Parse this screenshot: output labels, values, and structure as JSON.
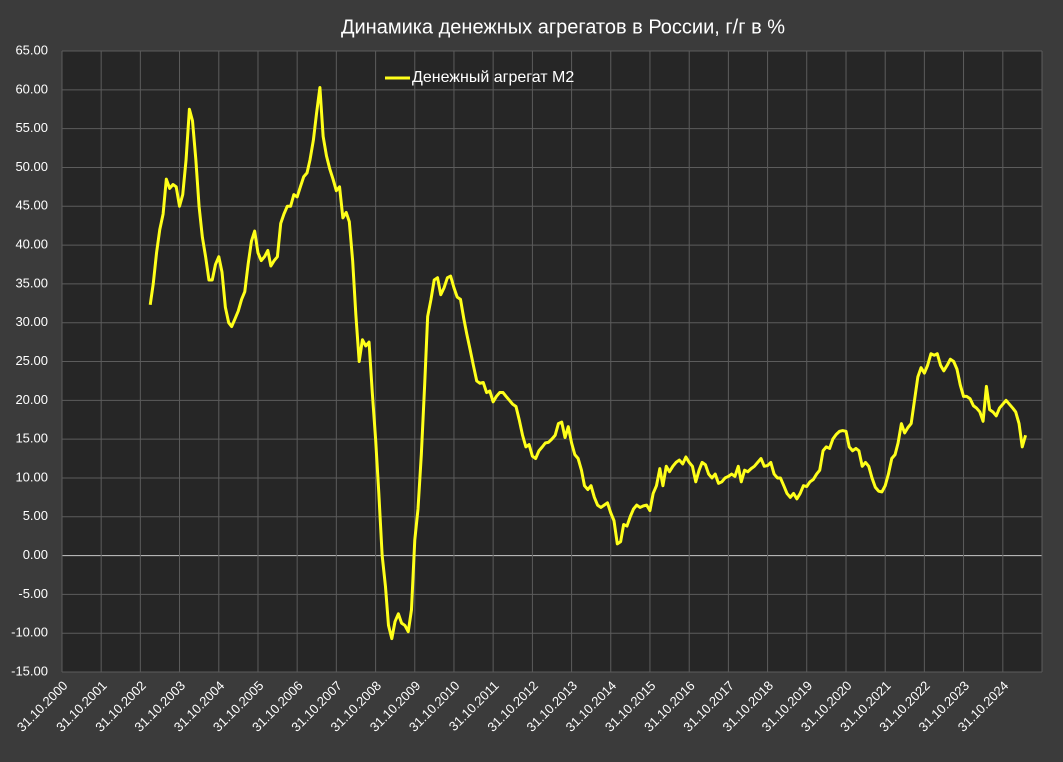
{
  "chart_data": {
    "type": "line",
    "title": "Динамика денежных агрегатов  в России, г/г в %",
    "legend": "top",
    "grid": true,
    "xlim": [
      "2000-10-31",
      "2025-10-31"
    ],
    "xticks": [
      {
        "value": "2000-10-31",
        "label": "31.10.2000"
      },
      {
        "value": "2001-10-31",
        "label": "31.10.2001"
      },
      {
        "value": "2002-10-31",
        "label": "31.10.2002"
      },
      {
        "value": "2003-10-31",
        "label": "31.10.2003"
      },
      {
        "value": "2004-10-31",
        "label": "31.10.2004"
      },
      {
        "value": "2005-10-31",
        "label": "31.10.2005"
      },
      {
        "value": "2006-10-31",
        "label": "31.10.2006"
      },
      {
        "value": "2007-10-31",
        "label": "31.10.2007"
      },
      {
        "value": "2008-10-31",
        "label": "31.10.2008"
      },
      {
        "value": "2009-10-31",
        "label": "31.10.2009"
      },
      {
        "value": "2010-10-31",
        "label": "31.10.2010"
      },
      {
        "value": "2011-10-31",
        "label": "31.10.2011"
      },
      {
        "value": "2012-10-31",
        "label": "31.10.2012"
      },
      {
        "value": "2013-10-31",
        "label": "31.10.2013"
      },
      {
        "value": "2014-10-31",
        "label": "31.10.2014"
      },
      {
        "value": "2015-10-31",
        "label": "31.10.2015"
      },
      {
        "value": "2016-10-31",
        "label": "31.10.2016"
      },
      {
        "value": "2017-10-31",
        "label": "31.10.2017"
      },
      {
        "value": "2018-10-31",
        "label": "31.10.2018"
      },
      {
        "value": "2019-10-31",
        "label": "31.10.2019"
      },
      {
        "value": "2020-10-31",
        "label": "31.10.2020"
      },
      {
        "value": "2021-10-31",
        "label": "31.10.2021"
      },
      {
        "value": "2022-10-31",
        "label": "31.10.2022"
      },
      {
        "value": "2023-10-31",
        "label": "31.10.2023"
      },
      {
        "value": "2024-10-31",
        "label": "31.10.2024"
      }
    ],
    "ylim": [
      -15,
      65
    ],
    "yticks": [
      {
        "value": -15,
        "label": "-15.00"
      },
      {
        "value": -10,
        "label": "-10.00"
      },
      {
        "value": -5,
        "label": "-5.00"
      },
      {
        "value": 0,
        "label": "0.00"
      },
      {
        "value": 5,
        "label": "5.00"
      },
      {
        "value": 10,
        "label": "10.00"
      },
      {
        "value": 15,
        "label": "15.00"
      },
      {
        "value": 20,
        "label": "20.00"
      },
      {
        "value": 25,
        "label": "25.00"
      },
      {
        "value": 30,
        "label": "30.00"
      },
      {
        "value": 35,
        "label": "35.00"
      },
      {
        "value": 40,
        "label": "40.00"
      },
      {
        "value": 45,
        "label": "45.00"
      },
      {
        "value": 50,
        "label": "50.00"
      },
      {
        "value": 55,
        "label": "55.00"
      },
      {
        "value": 60,
        "label": "60.00"
      },
      {
        "value": 65,
        "label": "65.00"
      }
    ],
    "x": [
      "2003-01-31",
      "2003-02-28",
      "2003-03-31",
      "2003-04-30",
      "2003-05-31",
      "2003-06-30",
      "2003-07-31",
      "2003-08-31",
      "2003-09-30",
      "2003-10-31",
      "2003-11-30",
      "2003-12-31",
      "2004-01-31",
      "2004-02-29",
      "2004-03-31",
      "2004-04-30",
      "2004-05-31",
      "2004-06-30",
      "2004-07-31",
      "2004-08-31",
      "2004-09-30",
      "2004-10-31",
      "2004-11-30",
      "2004-12-31",
      "2005-01-31",
      "2005-02-28",
      "2005-03-31",
      "2005-04-30",
      "2005-05-31",
      "2005-06-30",
      "2005-07-31",
      "2005-08-31",
      "2005-09-30",
      "2005-10-31",
      "2005-11-30",
      "2005-12-31",
      "2006-01-31",
      "2006-02-28",
      "2006-03-31",
      "2006-04-30",
      "2006-05-31",
      "2006-06-30",
      "2006-07-31",
      "2006-08-31",
      "2006-09-30",
      "2006-10-31",
      "2006-11-30",
      "2006-12-31",
      "2007-01-31",
      "2007-02-28",
      "2007-03-31",
      "2007-04-30",
      "2007-05-31",
      "2007-06-30",
      "2007-07-31",
      "2007-08-31",
      "2007-09-30",
      "2007-10-31",
      "2007-11-30",
      "2007-12-31",
      "2008-01-31",
      "2008-02-29",
      "2008-03-31",
      "2008-04-30",
      "2008-05-31",
      "2008-06-30",
      "2008-07-31",
      "2008-08-31",
      "2008-09-30",
      "2008-10-31",
      "2008-11-30",
      "2008-12-31",
      "2009-01-31",
      "2009-02-28",
      "2009-03-31",
      "2009-04-30",
      "2009-05-31",
      "2009-06-30",
      "2009-07-31",
      "2009-08-31",
      "2009-09-30",
      "2009-10-31",
      "2009-11-30",
      "2009-12-31",
      "2010-01-31",
      "2010-02-28",
      "2010-03-31",
      "2010-04-30",
      "2010-05-31",
      "2010-06-30",
      "2010-07-31",
      "2010-08-31",
      "2010-09-30",
      "2010-10-31",
      "2010-11-30",
      "2010-12-31",
      "2011-01-31",
      "2011-02-28",
      "2011-03-31",
      "2011-04-30",
      "2011-05-31",
      "2011-06-30",
      "2011-07-31",
      "2011-08-31",
      "2011-09-30",
      "2011-10-31",
      "2011-11-30",
      "2011-12-31",
      "2012-01-31",
      "2012-02-29",
      "2012-03-31",
      "2012-04-30",
      "2012-05-31",
      "2012-06-30",
      "2012-07-31",
      "2012-08-31",
      "2012-09-30",
      "2012-10-31",
      "2012-11-30",
      "2012-12-31",
      "2013-01-31",
      "2013-02-28",
      "2013-03-31",
      "2013-04-30",
      "2013-05-31",
      "2013-06-30",
      "2013-07-31",
      "2013-08-31",
      "2013-09-30",
      "2013-10-31",
      "2013-11-30",
      "2013-12-31",
      "2014-01-31",
      "2014-02-28",
      "2014-03-31",
      "2014-04-30",
      "2014-05-31",
      "2014-06-30",
      "2014-07-31",
      "2014-08-31",
      "2014-09-30",
      "2014-10-31",
      "2014-11-30",
      "2014-12-31",
      "2015-01-31",
      "2015-02-28",
      "2015-03-31",
      "2015-04-30",
      "2015-05-31",
      "2015-06-30",
      "2015-07-31",
      "2015-08-31",
      "2015-09-30",
      "2015-10-31",
      "2015-11-30",
      "2015-12-31",
      "2016-01-31",
      "2016-02-29",
      "2016-03-31",
      "2016-04-30",
      "2016-05-31",
      "2016-06-30",
      "2016-07-31",
      "2016-08-31",
      "2016-09-30",
      "2016-10-31",
      "2016-11-30",
      "2016-12-31",
      "2017-01-31",
      "2017-02-28",
      "2017-03-31",
      "2017-04-30",
      "2017-05-31",
      "2017-06-30",
      "2017-07-31",
      "2017-08-31",
      "2017-09-30",
      "2017-10-31",
      "2017-11-30",
      "2017-12-31",
      "2018-01-31",
      "2018-02-28",
      "2018-03-31",
      "2018-04-30",
      "2018-05-31",
      "2018-06-30",
      "2018-07-31",
      "2018-08-31",
      "2018-09-30",
      "2018-10-31",
      "2018-11-30",
      "2018-12-31",
      "2019-01-31",
      "2019-02-28",
      "2019-03-31",
      "2019-04-30",
      "2019-05-31",
      "2019-06-30",
      "2019-07-31",
      "2019-08-31",
      "2019-09-30",
      "2019-10-31",
      "2019-11-30",
      "2019-12-31",
      "2020-01-31",
      "2020-02-29",
      "2020-03-31",
      "2020-04-30",
      "2020-05-31",
      "2020-06-30",
      "2020-07-31",
      "2020-08-31",
      "2020-09-30",
      "2020-10-31",
      "2020-11-30",
      "2020-12-31",
      "2021-01-31",
      "2021-02-28",
      "2021-03-31",
      "2021-04-30",
      "2021-05-31",
      "2021-06-30",
      "2021-07-31",
      "2021-08-31",
      "2021-09-30",
      "2021-10-31",
      "2021-11-30",
      "2021-12-31",
      "2022-01-31",
      "2022-02-28",
      "2022-03-31",
      "2022-04-30",
      "2022-05-31",
      "2022-06-30",
      "2022-07-31",
      "2022-08-31",
      "2022-09-30",
      "2022-10-31",
      "2022-11-30",
      "2022-12-31",
      "2023-01-31",
      "2023-02-28",
      "2023-03-31",
      "2023-04-30",
      "2023-05-31",
      "2023-06-30",
      "2023-07-31",
      "2023-08-31",
      "2023-09-30",
      "2023-10-31",
      "2023-11-30",
      "2023-12-31",
      "2024-01-31",
      "2024-02-29",
      "2024-03-31",
      "2024-04-30",
      "2024-05-31",
      "2024-06-30",
      "2024-07-31",
      "2024-08-31",
      "2024-09-30",
      "2024-10-31",
      "2024-11-30",
      "2024-12-31",
      "2025-01-31",
      "2025-02-28",
      "2025-03-31",
      "2025-04-30",
      "2025-05-31"
    ],
    "series": [
      {
        "name": "Денежный агрегат М2",
        "color": "#ffff1a",
        "values": [
          32.3,
          35,
          39,
          42,
          44,
          48.5,
          47.3,
          47.8,
          47.5,
          45,
          46.5,
          51,
          57.5,
          56,
          51,
          45,
          41,
          38.5,
          35.5,
          35.5,
          37.5,
          38.5,
          36.5,
          32,
          30,
          29.5,
          30.5,
          31.5,
          33,
          34,
          37.5,
          40.5,
          41.8,
          39,
          38,
          38.5,
          39.3,
          37.3,
          38,
          38.5,
          42.8,
          44,
          45,
          45,
          46.5,
          46.2,
          47.5,
          48.8,
          49.3,
          51,
          53.5,
          57,
          60.3,
          54,
          51.5,
          49.8,
          48.5,
          47,
          47.5,
          43.5,
          44.2,
          43,
          38,
          31,
          25,
          27.8,
          27,
          27.5,
          21,
          15,
          8,
          0,
          -4,
          -9,
          -10.7,
          -8.5,
          -7.5,
          -8.7,
          -9,
          -9.8,
          -7,
          2,
          6,
          13,
          22,
          30.8,
          33,
          35.5,
          35.8,
          33.6,
          34.5,
          35.8,
          36,
          34.5,
          33.3,
          33,
          30.5,
          28.5,
          26.5,
          24.5,
          22.5,
          22.2,
          22.3,
          21,
          21.2,
          19.8,
          20.5,
          21,
          21,
          20.5,
          20,
          19.5,
          19.2,
          17.5,
          15.5,
          14,
          14.3,
          12.8,
          12.5,
          13.5,
          14,
          14.5,
          14.6,
          15,
          15.5,
          17,
          17.2,
          15.2,
          16.6,
          14.5,
          13,
          12.5,
          11,
          9,
          8.5,
          9,
          7.5,
          6.5,
          6.2,
          6.5,
          6.8,
          5.5,
          4.5,
          1.5,
          1.8,
          4,
          3.8,
          5,
          6,
          6.5,
          6.2,
          6.4,
          6.5,
          5.8,
          8,
          9,
          11.2,
          9,
          11.5,
          10.8,
          11.5,
          12,
          12.3,
          11.8,
          12.7,
          12,
          11.5,
          9.5,
          11,
          12,
          11.7,
          10.5,
          10,
          10.5,
          9.3,
          9.5,
          10,
          10.2,
          10.5,
          10.2,
          11.5,
          9.5,
          11,
          10.8,
          11.2,
          11.5,
          12,
          12.5,
          11.5,
          11.6,
          12,
          10.5,
          10,
          10,
          9,
          8,
          7.5,
          8,
          7.3,
          8,
          9,
          8.9,
          9.5,
          9.8,
          10.5,
          11,
          13.5,
          14,
          13.8,
          15,
          15.6,
          16,
          16.1,
          16,
          14,
          13.5,
          13.8,
          13.5,
          11.5,
          12,
          11.5,
          10,
          8.8,
          8.3,
          8.2,
          9,
          10.5,
          12.5,
          13,
          14.5,
          17,
          15.8,
          16.5,
          17,
          20,
          23,
          24.2,
          23.5,
          24.5,
          26,
          25.8,
          26,
          24.5,
          23.8,
          24.5,
          25.3,
          25,
          24,
          22,
          20.5,
          20.5,
          20.2,
          19.3,
          19,
          18.5,
          17.3,
          21.8,
          18.8,
          18.5,
          18,
          19,
          19.5,
          20,
          19.5,
          19,
          18.5,
          17,
          14,
          15.5
        ]
      }
    ]
  }
}
